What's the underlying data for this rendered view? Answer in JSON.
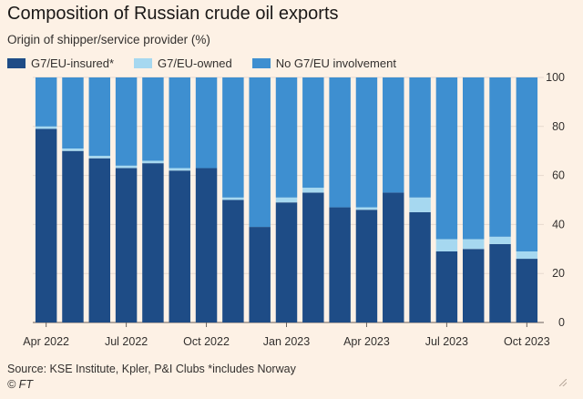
{
  "colors": {
    "insured": "#1e4c86",
    "owned": "#a6d8f0",
    "none": "#3e8fd0",
    "axis": "#66605c",
    "background": "#fdf1e5"
  },
  "chart_data": {
    "type": "bar",
    "stacked": true,
    "title": "Composition of Russian crude oil exports",
    "subtitle": "Origin of shipper/service provider (%)",
    "ylim": [
      0,
      100
    ],
    "yticks": [
      "0",
      "20",
      "40",
      "60",
      "80",
      "100"
    ],
    "x_tick_labels": [
      {
        "index": 0,
        "label": "Apr 2022"
      },
      {
        "index": 3,
        "label": "Jul 2022"
      },
      {
        "index": 6,
        "label": "Oct 2022"
      },
      {
        "index": 9,
        "label": "Jan 2023"
      },
      {
        "index": 12,
        "label": "Apr 2023"
      },
      {
        "index": 15,
        "label": "Jul 2023"
      },
      {
        "index": 18,
        "label": "Oct 2023"
      }
    ],
    "categories": [
      "Apr 2022",
      "May 2022",
      "Jun 2022",
      "Jul 2022",
      "Aug 2022",
      "Sep 2022",
      "Oct 2022",
      "Nov 2022",
      "Dec 2022",
      "Jan 2023",
      "Feb 2023",
      "Mar 2023",
      "Apr 2023",
      "May 2023",
      "Jun 2023",
      "Jul 2023",
      "Aug 2023",
      "Sep 2023",
      "Oct 2023"
    ],
    "series": [
      {
        "name": "G7/EU-insured*",
        "values": [
          79,
          70,
          67,
          63,
          65,
          62,
          63,
          50,
          39,
          49,
          53,
          47,
          46,
          53,
          45,
          29,
          30,
          32,
          26
        ]
      },
      {
        "name": "G7/EU-owned",
        "values": [
          1,
          1,
          1,
          1,
          1,
          1,
          0,
          1,
          0,
          2,
          2,
          0,
          1,
          0,
          6,
          5,
          4,
          3,
          3
        ]
      },
      {
        "name": "No G7/EU involvement",
        "values": [
          20,
          29,
          32,
          36,
          34,
          37,
          37,
          49,
          61,
          49,
          45,
          53,
          53,
          47,
          49,
          66,
          66,
          65,
          71
        ]
      }
    ],
    "legend": [
      "G7/EU-insured*",
      "G7/EU-owned",
      "No G7/EU involvement"
    ],
    "source": "Source: KSE Institute, Kpler, P&I Clubs *includes Norway",
    "credit": "© FT"
  }
}
